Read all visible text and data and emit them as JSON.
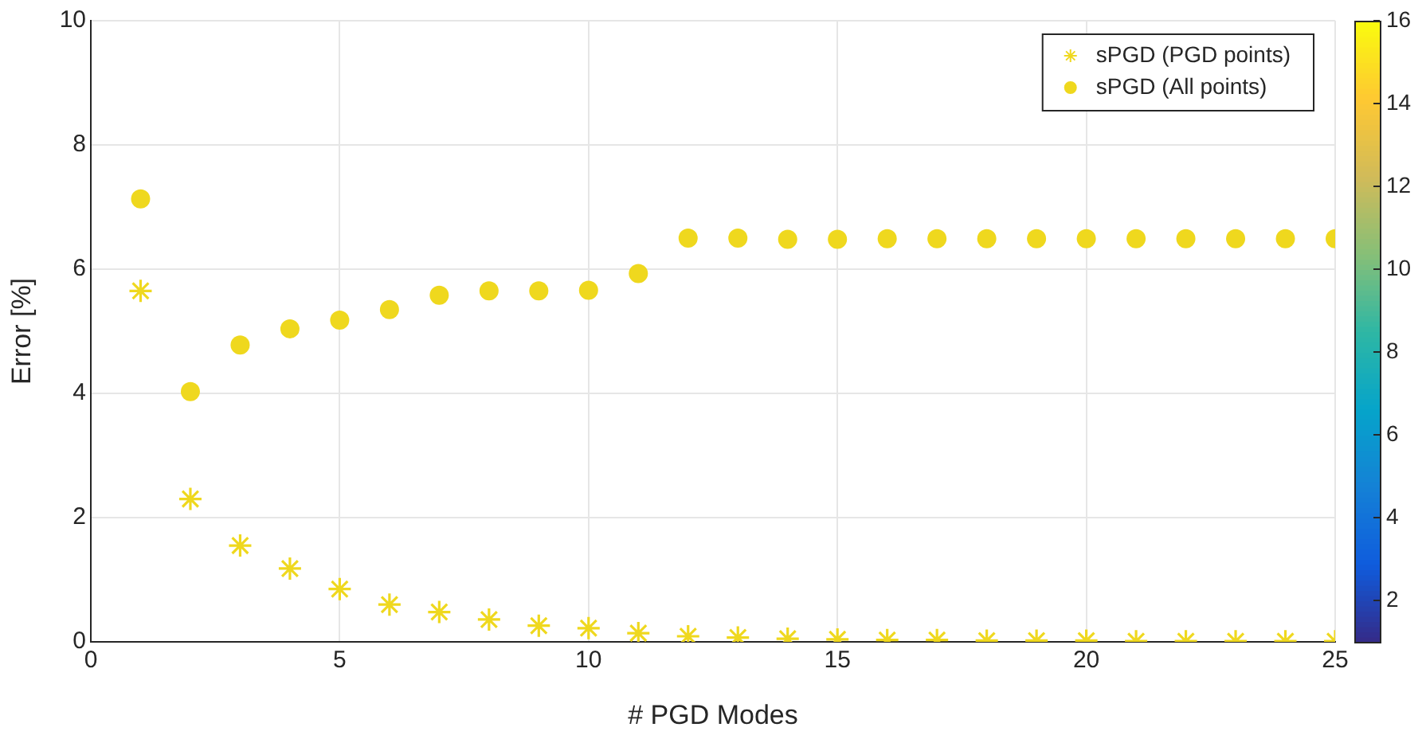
{
  "chart_data": {
    "type": "scatter",
    "xlabel": "# PGD Modes",
    "ylabel": "Error [%]",
    "x": [
      1,
      2,
      3,
      4,
      5,
      6,
      7,
      8,
      9,
      10,
      11,
      12,
      13,
      14,
      15,
      16,
      17,
      18,
      19,
      20,
      21,
      22,
      23,
      24,
      25
    ],
    "series": [
      {
        "name": "sPGD (PGD points)",
        "marker": "cross",
        "color": "#efd81e",
        "values": [
          5.65,
          2.3,
          1.55,
          1.18,
          0.85,
          0.6,
          0.48,
          0.36,
          0.26,
          0.22,
          0.14,
          0.09,
          0.07,
          0.05,
          0.04,
          0.03,
          0.03,
          0.02,
          0.02,
          0.02,
          0.01,
          0.01,
          0.01,
          0.01,
          0.01
        ]
      },
      {
        "name": "sPGD (All points)",
        "marker": "circle",
        "color": "#efd81e",
        "values": [
          7.13,
          4.03,
          4.78,
          5.04,
          5.18,
          5.35,
          5.58,
          5.65,
          5.65,
          5.66,
          5.93,
          6.5,
          6.5,
          6.48,
          6.48,
          6.49,
          6.49,
          6.49,
          6.49,
          6.49,
          6.49,
          6.49,
          6.49,
          6.49,
          6.49
        ]
      }
    ],
    "xlim": [
      0,
      25
    ],
    "xticks": [
      0,
      5,
      10,
      15,
      20,
      25
    ],
    "ylim": [
      0,
      10
    ],
    "yticks": [
      0,
      2,
      4,
      6,
      8,
      10
    ],
    "clim": [
      1,
      16
    ],
    "cticks": [
      2,
      4,
      6,
      8,
      10,
      12,
      14,
      16
    ],
    "grid": true,
    "legend": "top right"
  }
}
